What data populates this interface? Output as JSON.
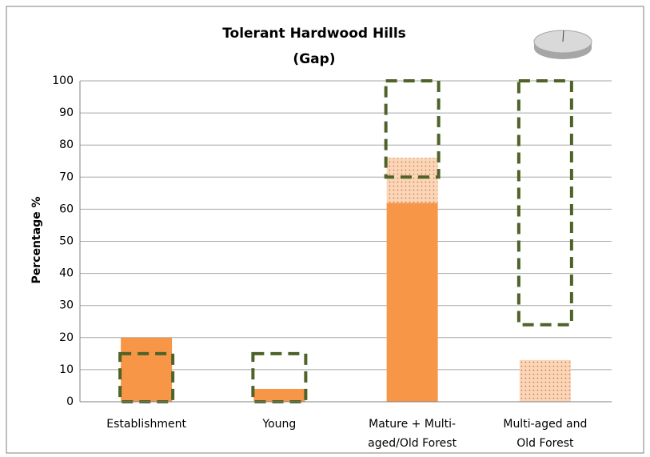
{
  "chart_data": {
    "type": "bar",
    "title": "Tolerant Hardwood Hills",
    "subtitle": "(Gap)",
    "y_label": "Percentage %",
    "categories": [
      [
        "Establishment"
      ],
      [
        "Young"
      ],
      [
        "Mature + Multi-",
        "aged/Old Forest"
      ],
      [
        "Multi-aged and",
        "Old Forest"
      ]
    ],
    "series": [
      {
        "color": "#f79646",
        "pattern": "solid",
        "values": [
          20,
          4,
          62,
          0
        ]
      },
      {
        "color": "#fbd5b5",
        "pattern": "dotted",
        "values": [
          0,
          0,
          14,
          13
        ]
      }
    ],
    "ranges": {
      "color": "#4f6228",
      "low": [
        0,
        0,
        70,
        24
      ],
      "high": [
        15,
        15,
        100,
        100
      ]
    },
    "ylim": [
      0,
      100
    ],
    "yticks": [
      0,
      10,
      20,
      30,
      40,
      50,
      60,
      70,
      80,
      90,
      100
    ],
    "grid": true
  }
}
